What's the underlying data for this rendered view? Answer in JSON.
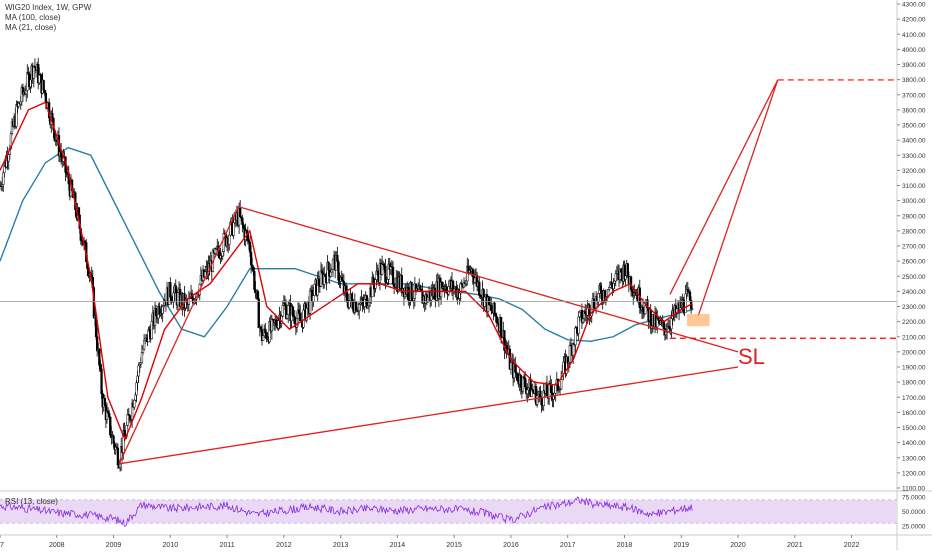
{
  "legend": {
    "symbol": "WIG20 Index, 1W, GPW",
    "ma100": "MA (100, close)",
    "ma21": "MA (21, close)"
  },
  "rsi": {
    "label": "RSI (13, close)"
  },
  "annotations": {
    "sl": "SL"
  },
  "colors": {
    "candle": "#000000",
    "ma21": "#e00000",
    "ma100": "#2a7fa5",
    "trendline": "#e02020",
    "target": "#ff0000",
    "rsi_line": "#8a2be2",
    "rsi_band": "#e9d9f5"
  },
  "chart_data": {
    "type": "line",
    "title": "WIG20 Index, 1W, GPW",
    "xlabel": "",
    "ylabel": "",
    "x_ticks": [
      "07",
      "2008",
      "2009",
      "2010",
      "2011",
      "2012",
      "2013",
      "2014",
      "2015",
      "2016",
      "2017",
      "2018",
      "2019",
      "2020",
      "2021",
      "2022"
    ],
    "y_ticks": [
      "1100.00",
      "1200.00",
      "1300.00",
      "1400.00",
      "1500.00",
      "1600.00",
      "1700.00",
      "1800.00",
      "1900.00",
      "2000.00",
      "2100.00",
      "2200.00",
      "2300.00",
      "2400.00",
      "2500.00",
      "2600.00",
      "2700.00",
      "2800.00",
      "2900.00",
      "3000.00",
      "3100.00",
      "3200.00",
      "3300.00",
      "3400.00",
      "3500.00",
      "3600.00",
      "3700.00",
      "3800.00",
      "3900.00",
      "4000.00",
      "4100.00",
      "4200.00",
      "4300.00"
    ],
    "ylim": [
      1100,
      4300
    ],
    "xlim": [
      2007.0,
      2022.8
    ],
    "price_labels": [
      {
        "value": "3797.99",
        "price": 3797.99
      },
      {
        "value": "2333.81",
        "price": 2333.81
      },
      {
        "value": "2089.89",
        "price": 2089.89
      }
    ],
    "series": [
      {
        "name": "WIG20 Index",
        "x": [
          2007.0,
          2007.3,
          2007.6,
          2007.8,
          2008.0,
          2008.3,
          2008.6,
          2008.8,
          2009.0,
          2009.1,
          2009.3,
          2009.5,
          2009.8,
          2010.0,
          2010.3,
          2010.6,
          2010.9,
          2011.2,
          2011.4,
          2011.6,
          2011.8,
          2012.0,
          2012.3,
          2012.6,
          2012.9,
          2013.1,
          2013.4,
          2013.7,
          2013.9,
          2014.2,
          2014.5,
          2014.8,
          2015.1,
          2015.3,
          2015.6,
          2015.8,
          2016.0,
          2016.2,
          2016.5,
          2016.8,
          2017.0,
          2017.2,
          2017.5,
          2017.8,
          2018.0,
          2018.2,
          2018.5,
          2018.7,
          2018.9,
          2019.1,
          2019.2
        ],
        "values": [
          3100,
          3600,
          3900,
          3700,
          3400,
          3000,
          2500,
          1700,
          1400,
          1300,
          1600,
          2000,
          2300,
          2400,
          2300,
          2500,
          2700,
          2900,
          2700,
          2100,
          2150,
          2300,
          2200,
          2450,
          2600,
          2350,
          2300,
          2550,
          2500,
          2400,
          2350,
          2450,
          2400,
          2550,
          2300,
          2200,
          1900,
          1800,
          1700,
          1750,
          1950,
          2200,
          2350,
          2450,
          2550,
          2400,
          2200,
          2150,
          2250,
          2350,
          2330
        ]
      },
      {
        "name": "MA (21, close)",
        "x": [
          2007.0,
          2007.5,
          2007.8,
          2008.2,
          2008.6,
          2008.9,
          2009.2,
          2009.5,
          2009.9,
          2010.3,
          2010.7,
          2011.1,
          2011.4,
          2011.7,
          2012.1,
          2012.5,
          2012.9,
          2013.3,
          2013.7,
          2014.1,
          2014.5,
          2014.9,
          2015.2,
          2015.6,
          2016.0,
          2016.4,
          2016.8,
          2017.1,
          2017.4,
          2017.8,
          2018.1,
          2018.4,
          2018.7,
          2019.0,
          2019.2
        ],
        "values": [
          3200,
          3600,
          3650,
          3200,
          2500,
          1700,
          1420,
          1700,
          2150,
          2350,
          2450,
          2650,
          2800,
          2300,
          2150,
          2250,
          2350,
          2450,
          2450,
          2400,
          2400,
          2400,
          2400,
          2250,
          1950,
          1800,
          1780,
          1950,
          2250,
          2400,
          2450,
          2300,
          2200,
          2280,
          2320
        ]
      },
      {
        "name": "MA (100, close)",
        "x": [
          2007.0,
          2007.4,
          2007.8,
          2008.2,
          2008.6,
          2009.0,
          2009.4,
          2009.8,
          2010.2,
          2010.6,
          2011.0,
          2011.4,
          2011.8,
          2012.2,
          2012.6,
          2013.0,
          2013.4,
          2013.8,
          2014.2,
          2014.6,
          2015.0,
          2015.4,
          2015.8,
          2016.2,
          2016.6,
          2017.0,
          2017.4,
          2017.8,
          2018.2,
          2018.6,
          2019.0,
          2019.2
        ],
        "values": [
          2600,
          3000,
          3250,
          3350,
          3300,
          3000,
          2700,
          2400,
          2150,
          2100,
          2300,
          2550,
          2550,
          2550,
          2500,
          2450,
          2450,
          2450,
          2450,
          2420,
          2400,
          2380,
          2350,
          2280,
          2150,
          2080,
          2070,
          2100,
          2180,
          2220,
          2260,
          2280
        ]
      }
    ],
    "trendlines": [
      {
        "from": {
          "x": 2009.1,
          "y": 1260
        },
        "to": {
          "x": 2011.2,
          "y": 2960
        }
      },
      {
        "from": {
          "x": 2011.2,
          "y": 2960
        },
        "to": {
          "x": 2020.0,
          "y": 2000
        }
      },
      {
        "from": {
          "x": 2009.1,
          "y": 1260
        },
        "to": {
          "x": 2020.0,
          "y": 1900
        }
      },
      {
        "from": {
          "x": 2018.8,
          "y": 2380
        },
        "to": {
          "x": 2020.7,
          "y": 3798
        }
      },
      {
        "from": {
          "x": 2020.7,
          "y": 3798
        },
        "to": {
          "x": 2019.3,
          "y": 2240
        }
      }
    ],
    "target_level": 3797.99,
    "stop_loss_level": 2089.89,
    "entry_zone": {
      "x_from": 2019.1,
      "x_to": 2019.5,
      "y_from": 2170,
      "y_to": 2250
    },
    "rsi": {
      "name": "RSI (13, close)",
      "y_ticks": [
        "25.0000",
        "50.0000",
        "75.0000"
      ],
      "ylim": [
        15,
        80
      ],
      "band": [
        30,
        70
      ],
      "x": [
        2007.0,
        2007.5,
        2008.0,
        2008.5,
        2009.0,
        2009.2,
        2009.5,
        2010.0,
        2010.5,
        2011.0,
        2011.5,
        2012.0,
        2012.5,
        2013.0,
        2013.5,
        2014.0,
        2014.5,
        2015.0,
        2015.5,
        2016.0,
        2016.5,
        2017.0,
        2017.2,
        2017.5,
        2018.0,
        2018.5,
        2019.0,
        2019.2
      ],
      "values": [
        60,
        55,
        48,
        45,
        38,
        30,
        62,
        55,
        58,
        60,
        45,
        52,
        58,
        50,
        55,
        52,
        55,
        54,
        48,
        35,
        55,
        65,
        70,
        62,
        58,
        45,
        55,
        58
      ]
    }
  }
}
